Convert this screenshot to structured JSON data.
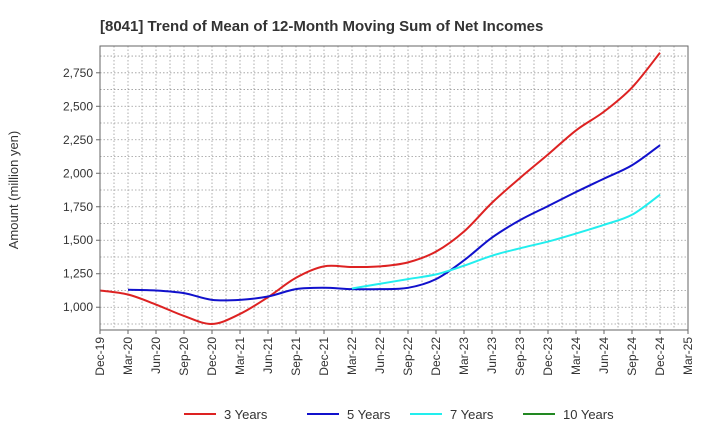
{
  "chart_data": {
    "type": "line",
    "title": "[8041]  Trend of Mean of 12-Month Moving Sum of Net Incomes",
    "xlabel": "",
    "ylabel": "Amount (million yen)",
    "ylim": [
      830,
      2950
    ],
    "yticks": [
      1000,
      1250,
      1500,
      1750,
      2000,
      2250,
      2500,
      2750
    ],
    "ytick_labels": [
      "1,000",
      "1,250",
      "1,500",
      "1,750",
      "2,000",
      "2,250",
      "2,500",
      "2,750"
    ],
    "categories": [
      "Dec-19",
      "Mar-20",
      "Jun-20",
      "Sep-20",
      "Dec-20",
      "Mar-21",
      "Jun-21",
      "Sep-21",
      "Dec-21",
      "Mar-22",
      "Jun-22",
      "Sep-22",
      "Dec-22",
      "Mar-23",
      "Jun-23",
      "Sep-23",
      "Dec-23",
      "Mar-24",
      "Jun-24",
      "Sep-24",
      "Dec-24",
      "Mar-25"
    ],
    "grid": true,
    "legend_position": "bottom",
    "series": [
      {
        "name": "3 Years",
        "color": "#dd2222",
        "values": [
          1125,
          1095,
          1020,
          935,
          875,
          950,
          1075,
          1220,
          1305,
          1300,
          1305,
          1335,
          1415,
          1565,
          1780,
          1965,
          2140,
          2320,
          2460,
          2640,
          2900,
          null
        ]
      },
      {
        "name": "5 Years",
        "color": "#1111cc",
        "values": [
          null,
          1130,
          1125,
          1105,
          1055,
          1055,
          1080,
          1135,
          1145,
          1135,
          1135,
          1145,
          1210,
          1350,
          1520,
          1650,
          1755,
          1860,
          1960,
          2060,
          2210,
          null
        ]
      },
      {
        "name": "7 Years",
        "color": "#22eeee",
        "values": [
          null,
          null,
          null,
          null,
          null,
          null,
          null,
          null,
          null,
          1140,
          1175,
          1210,
          1245,
          1310,
          1385,
          1440,
          1490,
          1550,
          1615,
          1690,
          1840,
          null
        ]
      },
      {
        "name": "10 Years",
        "color": "#228822",
        "values": [
          null,
          null,
          null,
          null,
          null,
          null,
          null,
          null,
          null,
          null,
          null,
          null,
          null,
          null,
          null,
          null,
          null,
          null,
          null,
          null,
          null,
          null
        ]
      }
    ]
  }
}
